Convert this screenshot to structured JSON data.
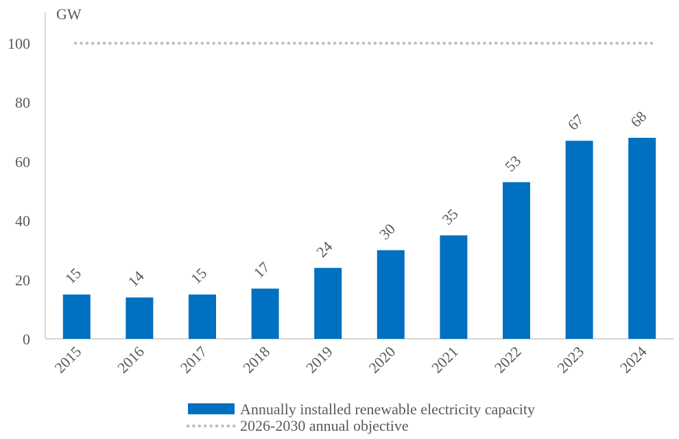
{
  "chart_data": {
    "type": "bar",
    "categories": [
      "2015",
      "2016",
      "2017",
      "2018",
      "2019",
      "2020",
      "2021",
      "2022",
      "2023",
      "2024"
    ],
    "series": [
      {
        "name": "Annually installed renewable electricity capacity",
        "values": [
          15,
          14,
          15,
          17,
          24,
          30,
          35,
          53,
          67,
          68
        ],
        "color": "#0070c0"
      }
    ],
    "data_labels": [
      "15",
      "14",
      "15",
      "17",
      "24",
      "30",
      "35",
      "53",
      "67",
      "68"
    ],
    "reference_line": {
      "name": "2026-2030 annual objective",
      "value": 100,
      "style": "dotted",
      "color": "#bfbfbf"
    },
    "unit_label": "GW",
    "yticks": [
      0,
      20,
      40,
      60,
      80,
      100
    ],
    "ylim": [
      0,
      100
    ],
    "grid": false,
    "legend_position": "bottom",
    "axis_color": "#bfbfbf",
    "text_color": "#595959"
  }
}
